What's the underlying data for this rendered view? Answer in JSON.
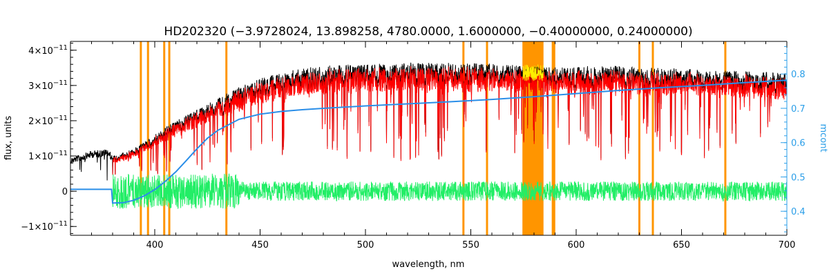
{
  "chart_data": {
    "type": "line",
    "title": "HD202320    (−3.9728024, 13.898258, 4780.0000, 1.6000000, −0.40000000, 0.24000000)",
    "xlabel": "wavelength, nm",
    "ylabel": "flux, units",
    "ylabel_right": "mcont",
    "xlim": [
      360,
      700
    ],
    "ylim": [
      -1.25e-11,
      4.25e-11
    ],
    "ylim_right": [
      0.33,
      0.895
    ],
    "x_ticks": [
      400,
      450,
      500,
      550,
      600,
      650,
      700
    ],
    "y_ticks": [
      {
        "value": -1e-11,
        "mant": "−1×10",
        "exp": "−11"
      },
      {
        "value": 0,
        "mant": "0",
        "exp": ""
      },
      {
        "value": 1e-11,
        "mant": "1×10",
        "exp": "−11"
      },
      {
        "value": 2e-11,
        "mant": "2×10",
        "exp": "−11"
      },
      {
        "value": 3e-11,
        "mant": "3×10",
        "exp": "−11"
      },
      {
        "value": 4e-11,
        "mant": "4×10",
        "exp": "−11"
      }
    ],
    "y_ticks_right": [
      "0.4",
      "0.5",
      "0.6",
      "0.7",
      "0.8"
    ],
    "y_ticks_right_values": [
      0.4,
      0.5,
      0.6,
      0.7,
      0.8
    ],
    "colors": {
      "observed": "#000000",
      "model": "#ff0000",
      "residual": "#22ee66",
      "continuum": "#2a8ee8",
      "masked_lines": "#ff9500",
      "masked_data": "#ffee00",
      "right_axis": "#2a9ee8"
    },
    "masked_lines_nm": [
      393.4,
      396.8,
      404.5,
      406.9,
      434.0,
      546.5,
      557.7,
      588.9,
      589.6,
      630.0,
      636.4,
      670.8
    ],
    "masked_band_nm": [
      574.5,
      584.5
    ],
    "observed_envelope": {
      "x": [
        360,
        370,
        378,
        380,
        390,
        400,
        410,
        420,
        430,
        440,
        450,
        460,
        470,
        480,
        490,
        500,
        520,
        540,
        560,
        580,
        600,
        620,
        640,
        660,
        680,
        700
      ],
      "y": [
        9.5e-12,
        1.15e-11,
        1.2e-11,
        1e-11,
        1.2e-11,
        1.6e-11,
        2e-11,
        2.3e-11,
        2.65e-11,
        2.95e-11,
        3.2e-11,
        3.35e-11,
        3.5e-11,
        3.55e-11,
        3.6e-11,
        3.6e-11,
        3.65e-11,
        3.65e-11,
        3.62e-11,
        3.55e-11,
        3.55e-11,
        3.55e-11,
        3.5e-11,
        3.45e-11,
        3.4e-11,
        3.35e-11
      ]
    },
    "continuum": {
      "x": [
        360,
        379.5,
        380,
        385,
        390,
        395,
        400,
        405,
        410,
        415,
        420,
        425,
        430,
        440,
        450,
        460,
        470,
        480,
        500,
        520,
        540,
        560,
        580,
        600,
        620,
        640,
        660,
        680,
        700
      ],
      "y": [
        0.464,
        0.464,
        0.424,
        0.425,
        0.432,
        0.445,
        0.463,
        0.487,
        0.515,
        0.548,
        0.582,
        0.613,
        0.636,
        0.668,
        0.683,
        0.691,
        0.696,
        0.7,
        0.707,
        0.713,
        0.719,
        0.726,
        0.734,
        0.743,
        0.752,
        0.76,
        0.767,
        0.775,
        0.782
      ]
    },
    "grid": false,
    "legend": "none"
  }
}
